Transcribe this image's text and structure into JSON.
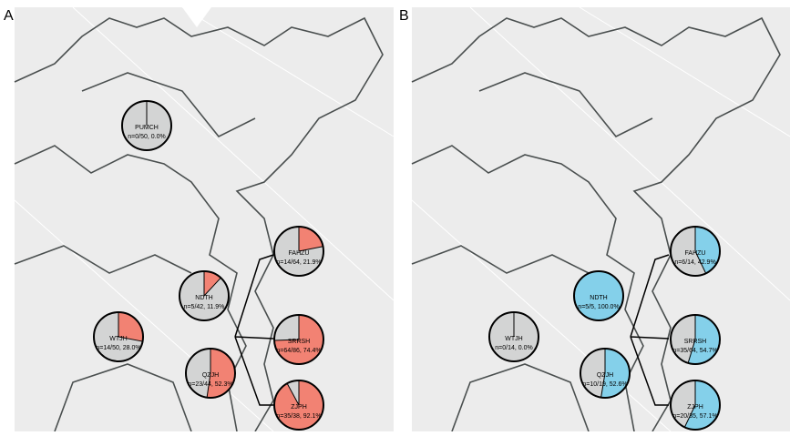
{
  "panels": [
    {
      "label": "A",
      "sites": [
        {
          "name": "PUMCH",
          "label": "n=0/50, 0.0%",
          "percent": 0.0
        },
        {
          "name": "FAHZU",
          "label": "n=14/64, 21.9%",
          "percent": 21.9
        },
        {
          "name": "NDTH",
          "label": "n=5/42, 11.9%",
          "percent": 11.9
        },
        {
          "name": "WTJH",
          "label": "n=14/50, 28.0%",
          "percent": 28.0
        },
        {
          "name": "SRRSH",
          "label": "n=64/86, 74.4%",
          "percent": 74.4
        },
        {
          "name": "QZJH",
          "label": "n=23/44, 52.3%",
          "percent": 52.3
        },
        {
          "name": "ZJPH",
          "label": "n=35/38, 92.1%",
          "percent": 92.1
        }
      ],
      "color": "#f28273"
    },
    {
      "label": "B",
      "sites": [
        {
          "name": "FAHZU",
          "label": "n=6/14, 42.9%",
          "percent": 42.9
        },
        {
          "name": "NDTH",
          "label": "n=5/5, 100.0%",
          "percent": 100.0
        },
        {
          "name": "WTJH",
          "label": "n=0/14, 0.0%",
          "percent": 0.0
        },
        {
          "name": "SRRSH",
          "label": "n=35/64, 54.7%",
          "percent": 54.7
        },
        {
          "name": "QZJH",
          "label": "n=10/19, 52.6%",
          "percent": 52.6
        },
        {
          "name": "ZJPH",
          "label": "n=20/35, 57.1%",
          "percent": 57.1
        }
      ],
      "color": "#84d0ea"
    }
  ]
}
